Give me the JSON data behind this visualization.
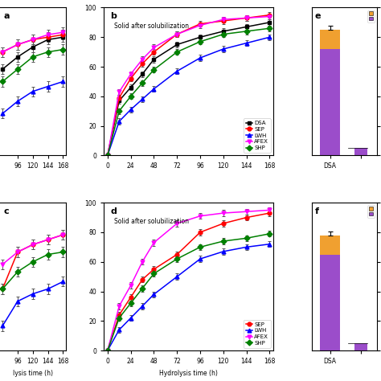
{
  "b_times": [
    0,
    12,
    24,
    36,
    48,
    72,
    96,
    120,
    144,
    168
  ],
  "b_DSA": [
    0,
    37,
    46,
    55,
    65,
    75,
    80,
    84,
    87,
    90
  ],
  "b_SEP": [
    0,
    39,
    52,
    62,
    70,
    82,
    89,
    91,
    93,
    95
  ],
  "b_LWH": [
    0,
    23,
    31,
    38,
    45,
    57,
    66,
    72,
    76,
    80
  ],
  "b_AFEX": [
    0,
    43,
    55,
    65,
    73,
    82,
    88,
    92,
    93,
    94
  ],
  "b_SHP": [
    0,
    30,
    40,
    49,
    58,
    70,
    77,
    82,
    84,
    86
  ],
  "a_times": [
    72,
    96,
    120,
    144,
    168
  ],
  "a_DSA": [
    75,
    80,
    84,
    87,
    88
  ],
  "a_SEP": [
    82,
    85,
    87,
    88,
    89
  ],
  "a_LWH": [
    57,
    62,
    66,
    68,
    70
  ],
  "a_AFEX": [
    82,
    85,
    87,
    89,
    90
  ],
  "a_SHP": [
    70,
    75,
    80,
    82,
    83
  ],
  "d_times": [
    0,
    12,
    24,
    36,
    48,
    72,
    96,
    120,
    144,
    168
  ],
  "d_SEP": [
    0,
    24,
    36,
    48,
    55,
    65,
    80,
    86,
    90,
    93
  ],
  "d_LWH": [
    0,
    14,
    22,
    30,
    38,
    50,
    62,
    67,
    70,
    72
  ],
  "d_AFEX": [
    0,
    30,
    44,
    60,
    73,
    86,
    91,
    93,
    94,
    95
  ],
  "d_SHP": [
    0,
    22,
    32,
    42,
    52,
    62,
    70,
    74,
    76,
    79
  ],
  "c_times": [
    72,
    96,
    120,
    144,
    168
  ],
  "c_SEP": [
    65,
    80,
    83,
    85,
    87
  ],
  "c_LWH": [
    50,
    60,
    63,
    65,
    68
  ],
  "c_AFEX": [
    75,
    80,
    83,
    85,
    87
  ],
  "c_SHP": [
    65,
    72,
    76,
    79,
    80
  ],
  "e_bar_purple": 72.0,
  "e_bar_orange": 13.0,
  "e_bar2_purple": 5.0,
  "f_bar_purple": 65.0,
  "f_bar_orange": 13.0,
  "f_bar2_purple": 5.0,
  "colors": {
    "DSA": "#000000",
    "SEP": "#ff0000",
    "LWH": "#0000ff",
    "AFEX": "#ff00ff",
    "SHP": "#008000"
  },
  "markers": {
    "DSA": "s",
    "SEP": "o",
    "LWH": "^",
    "AFEX": "v",
    "SHP": "D"
  },
  "bar_purple": "#9B4DCA",
  "bar_orange": "#F0A030",
  "background": "#ffffff"
}
